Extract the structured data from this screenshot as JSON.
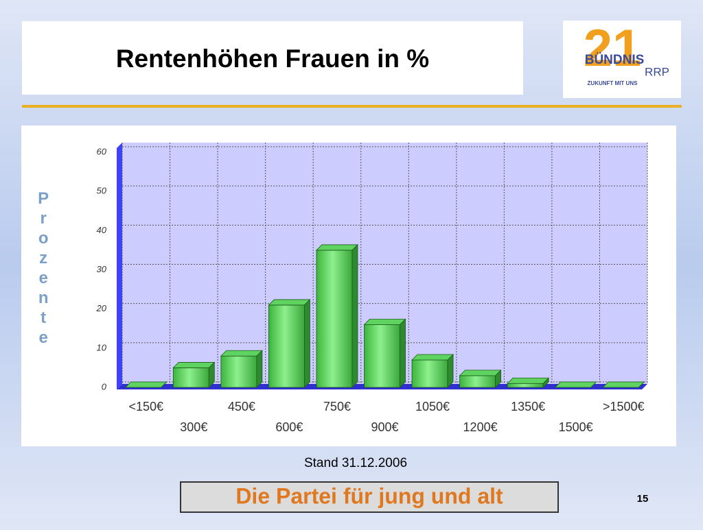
{
  "slide": {
    "title": "Rentenhöhen Frauen in %",
    "logo": {
      "number": "21",
      "name": "BÜNDNIS",
      "suffix": "RRP",
      "slogan": "ZUKUNFT MIT UNS"
    },
    "note": "Stand 31.12.2006",
    "footer": "Die Partei für jung und alt",
    "page": "15"
  },
  "chart_data": {
    "type": "bar",
    "y_label": "Prozente",
    "categories": [
      "<150€",
      "300€",
      "450€",
      "600€",
      "750€",
      "900€",
      "1050€",
      "1200€",
      "1350€",
      "1500€",
      ">1500€"
    ],
    "values": [
      0,
      5,
      8,
      21,
      35,
      16,
      7,
      3,
      1,
      0,
      0
    ],
    "color": "#5fd35f",
    "ylim": [
      0,
      60
    ],
    "yticks": [
      0,
      10,
      20,
      30,
      40,
      50,
      60
    ],
    "grid": true
  }
}
